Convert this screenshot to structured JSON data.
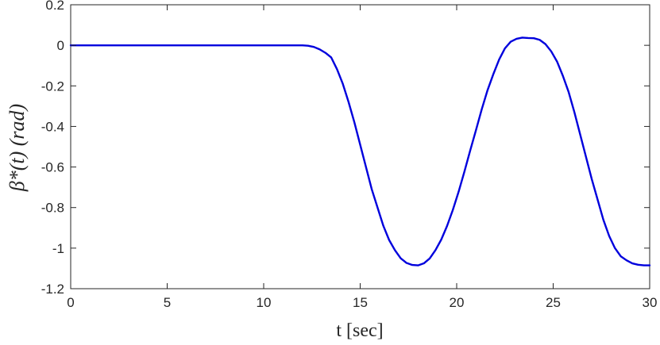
{
  "chart_data": {
    "type": "line",
    "xlabel": "t [sec]",
    "ylabel": "β*(t) (rad)",
    "xlim": [
      0,
      30
    ],
    "ylim": [
      -1.2,
      0.2
    ],
    "xticks": [
      "0",
      "5",
      "10",
      "15",
      "20",
      "25",
      "30"
    ],
    "yticks": [
      "0.2",
      "0",
      "-0.2",
      "-0.4",
      "-0.6",
      "-0.8",
      "-1",
      "-1.2"
    ],
    "grid": false,
    "series": [
      {
        "color": "#0000dd",
        "x": [
          0,
          2,
          4,
          6,
          8,
          10,
          11,
          11.5,
          12,
          12.3,
          12.6,
          12.9,
          13.2,
          13.5,
          13.8,
          14.1,
          14.4,
          14.7,
          15,
          15.3,
          15.6,
          15.9,
          16.2,
          16.5,
          16.8,
          17.1,
          17.4,
          17.7,
          18,
          18.3,
          18.6,
          18.9,
          19.2,
          19.5,
          19.8,
          20.1,
          20.4,
          20.7,
          21,
          21.3,
          21.6,
          21.9,
          22.2,
          22.5,
          22.8,
          23.1,
          23.4,
          23.7,
          24,
          24.3,
          24.6,
          24.9,
          25.2,
          25.5,
          25.8,
          26.1,
          26.4,
          26.7,
          27,
          27.3,
          27.6,
          27.9,
          28.2,
          28.5,
          28.8,
          29.1,
          29.4,
          29.7,
          30
        ],
        "y": [
          0,
          0,
          0,
          0,
          0,
          0,
          0,
          0,
          0,
          -0.002,
          -0.008,
          -0.02,
          -0.037,
          -0.06,
          -0.118,
          -0.19,
          -0.28,
          -0.38,
          -0.49,
          -0.6,
          -0.71,
          -0.8,
          -0.89,
          -0.96,
          -1.01,
          -1.05,
          -1.073,
          -1.083,
          -1.085,
          -1.075,
          -1.051,
          -1.01,
          -0.958,
          -0.891,
          -0.812,
          -0.722,
          -0.623,
          -0.519,
          -0.418,
          -0.315,
          -0.221,
          -0.142,
          -0.07,
          -0.015,
          0.018,
          0.032,
          0.038,
          0.036,
          0.035,
          0.027,
          0.006,
          -0.03,
          -0.08,
          -0.15,
          -0.23,
          -0.33,
          -0.44,
          -0.55,
          -0.66,
          -0.76,
          -0.86,
          -0.94,
          -1.0,
          -1.04,
          -1.06,
          -1.075,
          -1.082,
          -1.085,
          -1.085
        ]
      }
    ]
  }
}
